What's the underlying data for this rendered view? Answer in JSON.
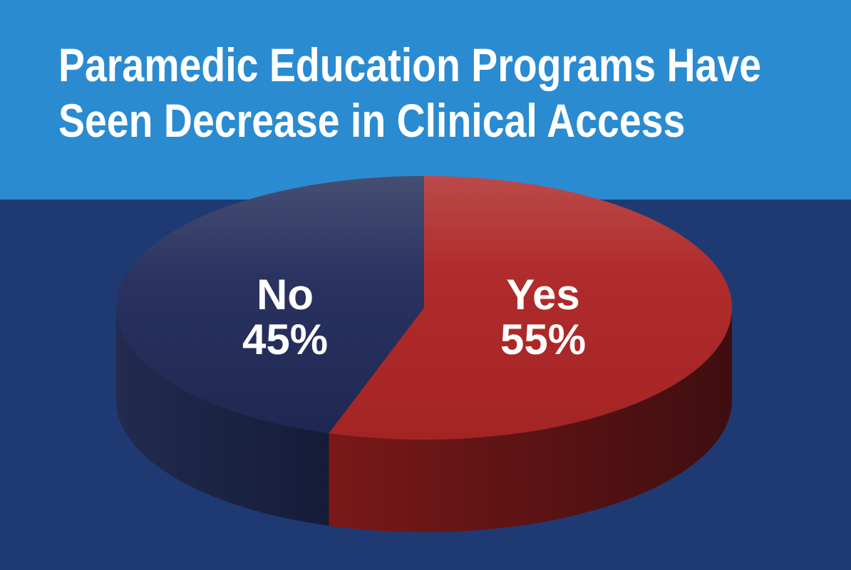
{
  "chart_data": {
    "type": "pie",
    "title": [
      "Paramedic Education Programs Have",
      "Seen Decrease in Clinical Access"
    ],
    "slices": [
      {
        "label": "No",
        "value": 45,
        "value_label": "45%",
        "color": "#2a3563"
      },
      {
        "label": "Yes",
        "value": 55,
        "value_label": "55%",
        "color": "#b02a2a"
      }
    ],
    "style": "3d",
    "legend": "none",
    "background_colors": {
      "header": "#2a8bd1",
      "body": "#1f3a72"
    }
  }
}
